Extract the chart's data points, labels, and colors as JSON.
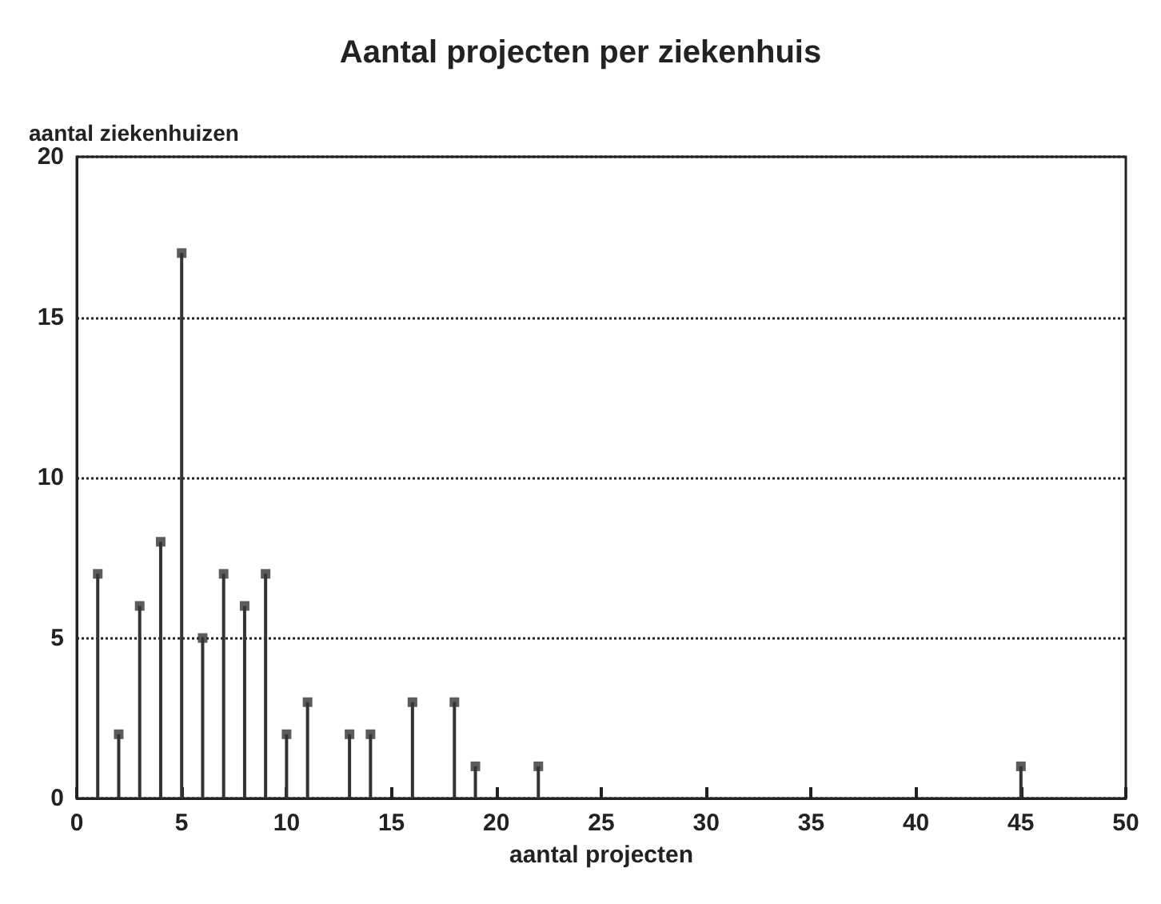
{
  "chart_data": {
    "type": "lollipop",
    "title": "Aantal projecten per ziekenhuis",
    "xlabel": "aantal projecten",
    "ylabel": "aantal ziekenhuizen",
    "x": [
      1,
      2,
      3,
      4,
      5,
      6,
      7,
      8,
      9,
      10,
      11,
      13,
      14,
      16,
      18,
      19,
      22,
      45
    ],
    "values": [
      7,
      2,
      6,
      8,
      17,
      5,
      7,
      6,
      7,
      2,
      3,
      2,
      2,
      3,
      3,
      1,
      1,
      1
    ],
    "color": "#333333",
    "marker": "square",
    "xlim": [
      0,
      50
    ],
    "xticks": [
      0,
      5,
      10,
      15,
      20,
      25,
      30,
      35,
      40,
      45,
      50
    ],
    "ylim": [
      0,
      20
    ],
    "yticks": [
      0,
      5,
      10,
      15,
      20
    ],
    "grid": "y",
    "line_style": "dotted"
  }
}
